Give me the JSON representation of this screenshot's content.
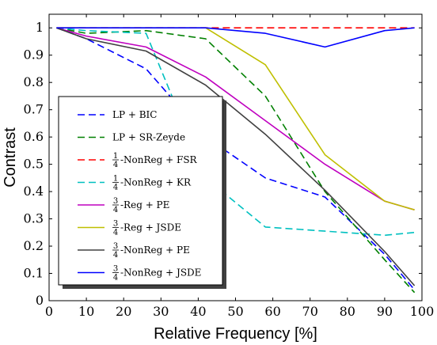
{
  "chart_data": {
    "type": "line",
    "title": "",
    "xlabel": "Relative Frequency [%]",
    "ylabel": "Contrast",
    "xlim": [
      0,
      100
    ],
    "ylim": [
      0,
      1.05
    ],
    "xticks": [
      0,
      10,
      20,
      30,
      40,
      50,
      60,
      70,
      80,
      90,
      100
    ],
    "yticks": [
      0,
      0.1,
      0.2,
      0.3,
      0.4,
      0.5,
      0.6,
      0.7,
      0.8,
      0.9,
      1
    ],
    "ytick_labels": [
      "0",
      "0.1",
      "0.2",
      "0.3",
      "0.4",
      "0.5",
      "0.6",
      "0.7",
      "0.8",
      "0.9",
      "1"
    ],
    "grid": false,
    "legend_position": "left",
    "series": [
      {
        "name_frac": "",
        "name": "LP + BIC",
        "color": "#0000ff",
        "style": "dashed",
        "x": [
          2,
          10,
          26,
          42,
          58,
          74,
          90,
          98
        ],
        "y": [
          1,
          0.96,
          0.85,
          0.6,
          0.45,
          0.38,
          0.17,
          0.04
        ]
      },
      {
        "name_frac": "",
        "name": "LP + SR-Zeyde",
        "color": "#008000",
        "style": "dashed",
        "x": [
          2,
          10,
          26,
          42,
          58,
          74,
          90,
          98
        ],
        "y": [
          1,
          0.98,
          0.99,
          0.96,
          0.75,
          0.4,
          0.15,
          0.03
        ]
      },
      {
        "name_frac": "1/4",
        "name": "-NonReg + FSR",
        "color": "#ff0000",
        "style": "dashed",
        "x": [
          2,
          10,
          26,
          42,
          58,
          74,
          90,
          98
        ],
        "y": [
          1,
          1,
          1,
          1,
          1,
          1,
          1,
          1
        ]
      },
      {
        "name_frac": "1/4",
        "name": "-NonReg + KR",
        "color": "#00c0c0",
        "style": "dashed",
        "x": [
          2,
          10,
          26,
          42,
          58,
          74,
          90,
          98
        ],
        "y": [
          1,
          0.99,
          0.98,
          0.45,
          0.27,
          0.255,
          0.24,
          0.25
        ]
      },
      {
        "name_frac": "3/4",
        "name": "-Reg + PE",
        "color": "#bf00bf",
        "style": "solid",
        "x": [
          2,
          10,
          26,
          42,
          58,
          74,
          90,
          98
        ],
        "y": [
          1,
          0.97,
          0.93,
          0.82,
          0.66,
          0.5,
          0.365,
          0.333
        ]
      },
      {
        "name_frac": "3/4",
        "name": "-Reg + JSDE",
        "color": "#bfbf00",
        "style": "solid",
        "x": [
          2,
          10,
          26,
          42,
          58,
          74,
          90,
          98
        ],
        "y": [
          1,
          1,
          1,
          1,
          0.865,
          0.535,
          0.365,
          0.333
        ]
      },
      {
        "name_frac": "3/4",
        "name": "-NonReg + PE",
        "color": "#404040",
        "style": "solid",
        "x": [
          2,
          10,
          26,
          42,
          58,
          74,
          90,
          98
        ],
        "y": [
          1,
          0.96,
          0.915,
          0.79,
          0.61,
          0.405,
          0.18,
          0.055
        ]
      },
      {
        "name_frac": "3/4",
        "name": "-NonReg + JSDE",
        "color": "#0000ff",
        "style": "solid",
        "x": [
          2,
          10,
          26,
          42,
          58,
          74,
          90,
          98
        ],
        "y": [
          1,
          1,
          1,
          1,
          0.98,
          0.93,
          0.99,
          1
        ]
      }
    ]
  }
}
